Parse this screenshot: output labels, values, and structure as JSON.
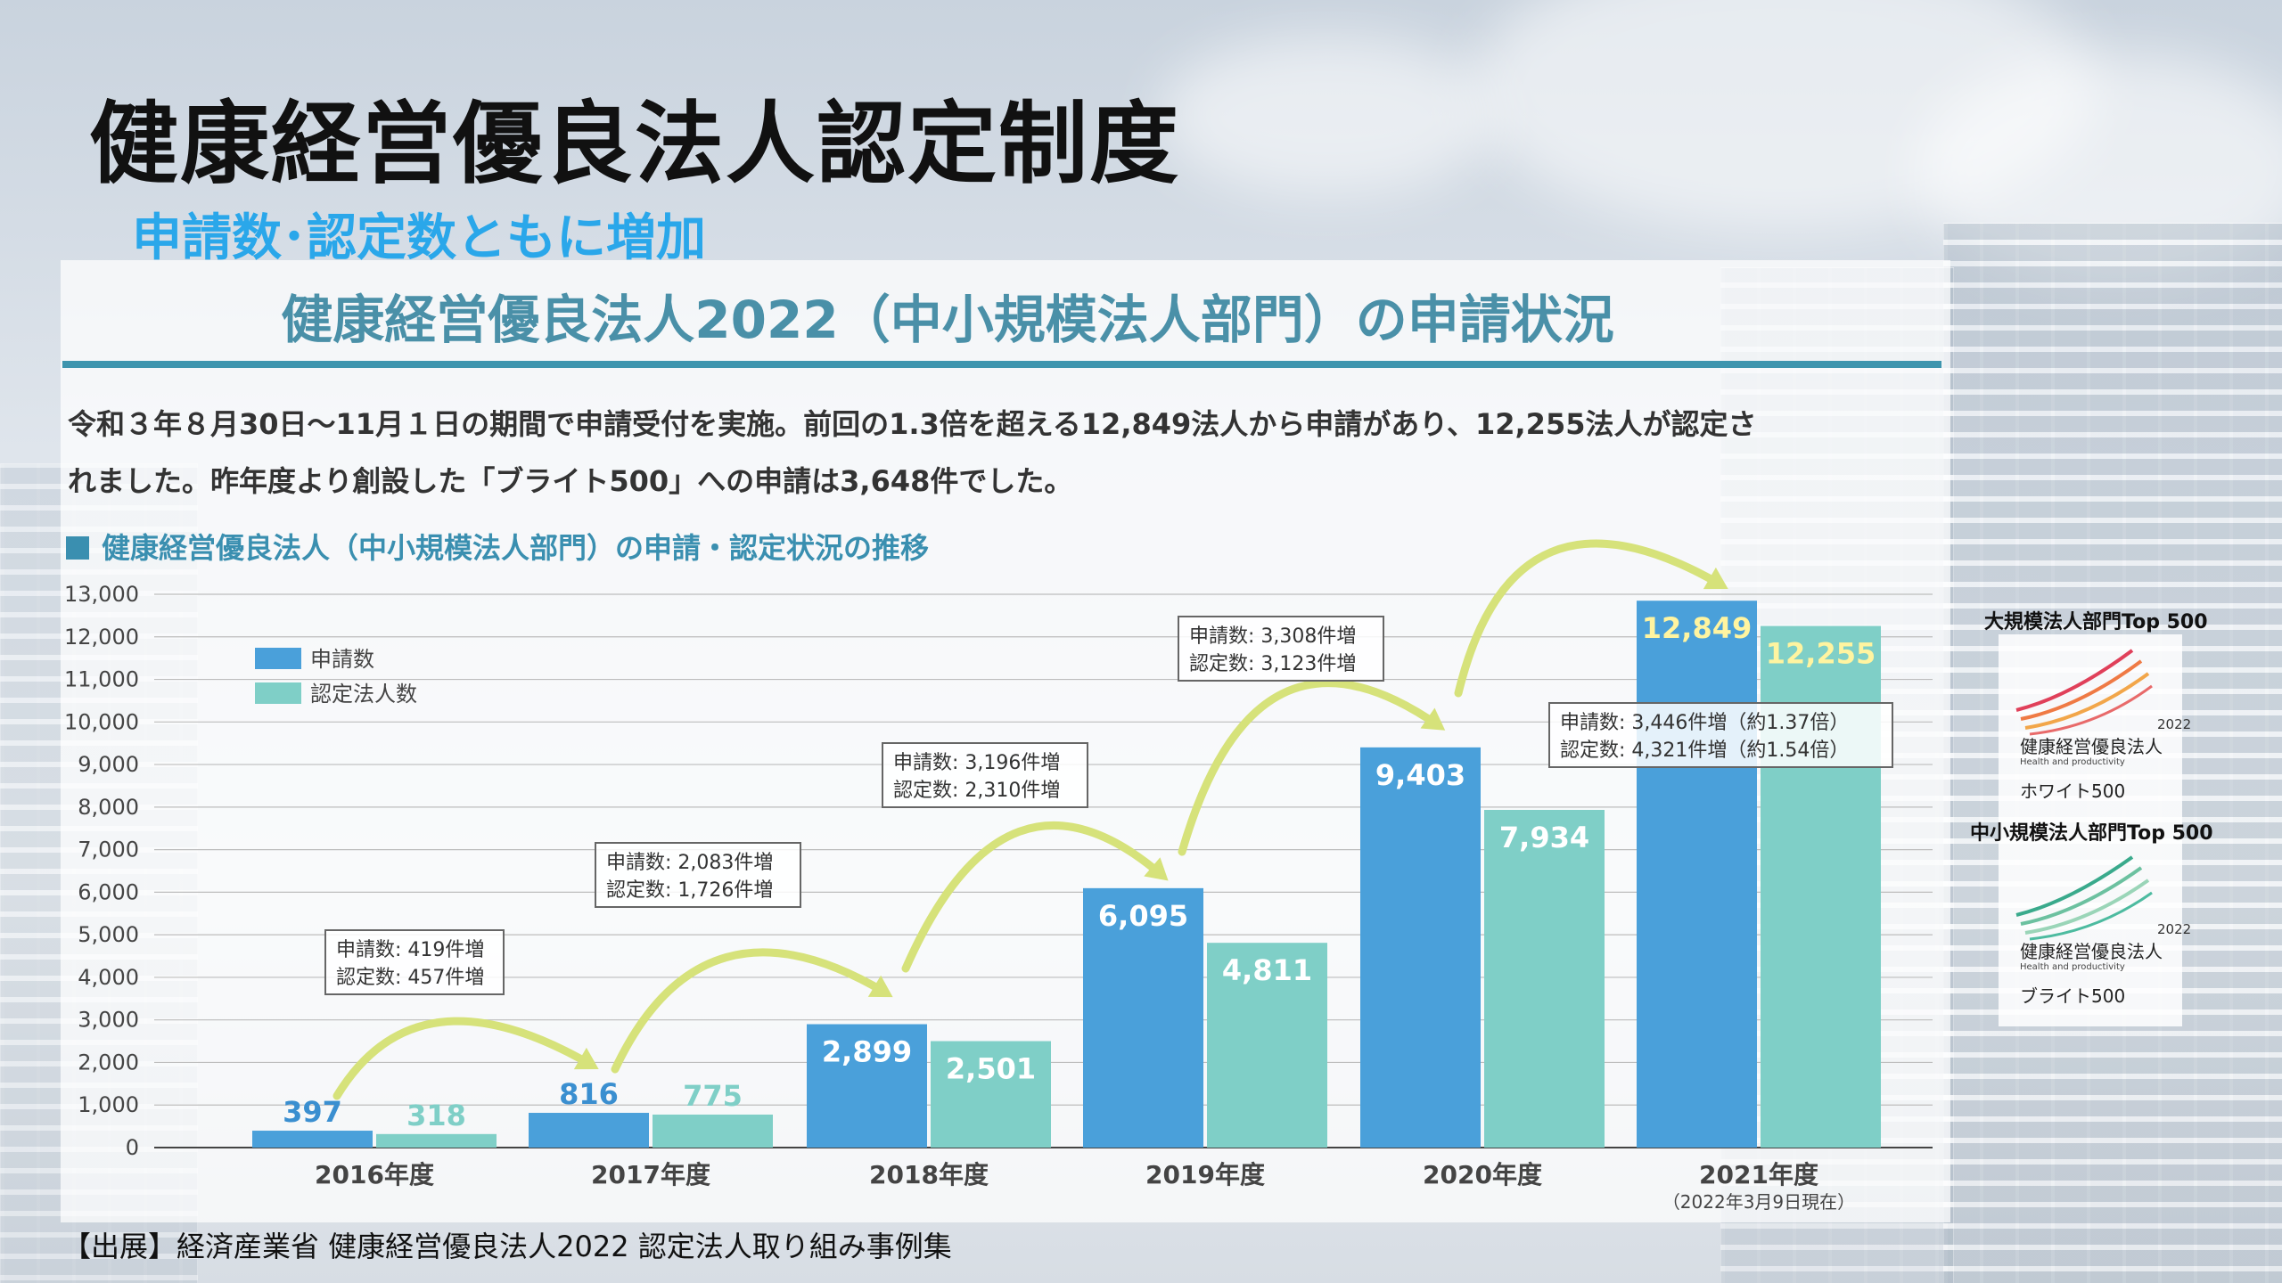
{
  "slide": {
    "title": "健康経営優良法人認定制度",
    "subtitle": "申請数･認定数ともに増加"
  },
  "panel": {
    "title": "健康経営優良法人2022（中小規模法人部門）の申請状況",
    "desc_line1": "令和３年８月30日～11月１日の期間で申請受付を実施。前回の1.3倍を超える12,849法人から申請があり、12,255法人が認定さ",
    "desc_line2": "れました。昨年度より創設した「ブライト500」への申請は3,648件でした。",
    "section_heading": "健康経営優良法人（中小規模法人部門）の申請・認定状況の推移"
  },
  "chart_data": {
    "type": "bar",
    "title": "健康経営優良法人（中小規模法人部門）の申請・認定状況の推移",
    "categories": [
      "2016年度",
      "2017年度",
      "2018年度",
      "2019年度",
      "2020年度",
      "2021年度"
    ],
    "category_note": "（2022年3月9日現在）",
    "series": [
      {
        "name": "申請数",
        "color": "#4aa0da",
        "values": [
          397,
          816,
          2899,
          6095,
          9403,
          12849
        ],
        "labels": [
          "397",
          "816",
          "2,899",
          "6,095",
          "9,403",
          "12,849"
        ]
      },
      {
        "name": "認定法人数",
        "color": "#7fcfc7",
        "values": [
          318,
          775,
          2501,
          4811,
          7934,
          12255
        ],
        "labels": [
          "318",
          "775",
          "2,501",
          "4,811",
          "7,934",
          "12,255"
        ]
      }
    ],
    "ylim": [
      0,
      13000
    ],
    "yticks": [
      "0",
      "1,000",
      "2,000",
      "3,000",
      "4,000",
      "5,000",
      "6,000",
      "7,000",
      "8,000",
      "9,000",
      "10,000",
      "11,000",
      "12,000",
      "13,000"
    ],
    "legend_position": "top-left",
    "grid": true,
    "annotations": [
      {
        "line1": "申請数: 419件増",
        "line2": "認定数: 457件増"
      },
      {
        "line1": "申請数: 2,083件増",
        "line2": "認定数: 1,726件増"
      },
      {
        "line1": "申請数: 3,196件増",
        "line2": "認定数: 2,310件増"
      },
      {
        "line1": "申請数: 3,308件増",
        "line2": "認定数: 3,123件増"
      },
      {
        "line1": "申請数: 3,446件増（約1.37倍）",
        "line2": "認定数: 4,321件増（約1.54倍）"
      }
    ]
  },
  "source": "【出展】経済産業省 健康経営優良法人2022 認定法人取り組み事例集",
  "logos": {
    "large_heading": "大規模法人部門Top 500",
    "sme_heading": "中小規模法人部門Top 500",
    "year": "2022",
    "name": "健康経営優良法人",
    "tagline": "Health and productivity",
    "white": "ホワイト500",
    "bright": "ブライト500",
    "white_color": "#e0405a",
    "bright_color": "#3aaa8c"
  }
}
